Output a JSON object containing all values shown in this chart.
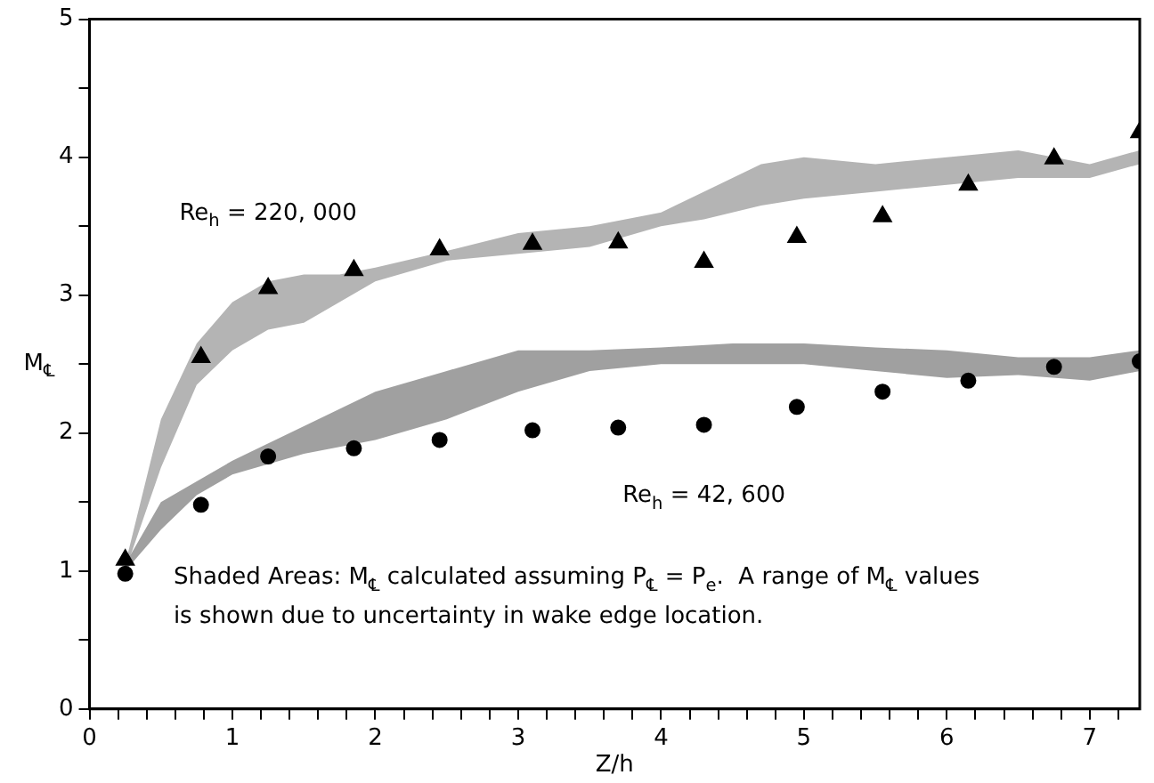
{
  "chart_data": {
    "type": "scatter",
    "xlabel": "Z/h",
    "ylabel": "M$_{℄}$",
    "xlim": [
      0,
      7.35
    ],
    "ylim": [
      0,
      5
    ],
    "xticks": [
      0,
      {
        "value": 0.2,
        "label": null
      },
      {
        "value": 0.4,
        "label": null
      },
      {
        "value": 0.6,
        "label": null
      },
      {
        "value": 0.8,
        "label": null
      },
      1,
      {
        "value": 1.2,
        "label": null
      },
      {
        "value": 1.4,
        "label": null
      },
      {
        "value": 1.6,
        "label": null
      },
      {
        "value": 1.8,
        "label": null
      },
      2,
      {
        "value": 2.2,
        "label": null
      },
      {
        "value": 2.4,
        "label": null
      },
      {
        "value": 2.6,
        "label": null
      },
      {
        "value": 2.8,
        "label": null
      },
      3,
      {
        "value": 3.2,
        "label": null
      },
      {
        "value": 3.4,
        "label": null
      },
      {
        "value": 3.6,
        "label": null
      },
      {
        "value": 3.8,
        "label": null
      },
      4,
      {
        "value": 4.2,
        "label": null
      },
      {
        "value": 4.4,
        "label": null
      },
      {
        "value": 4.6,
        "label": null
      },
      {
        "value": 4.8,
        "label": null
      },
      5,
      {
        "value": 5.2,
        "label": null
      },
      {
        "value": 5.4,
        "label": null
      },
      {
        "value": 5.6,
        "label": null
      },
      {
        "value": 5.8,
        "label": null
      },
      6,
      {
        "value": 6.2,
        "label": null
      },
      {
        "value": 6.4,
        "label": null
      },
      {
        "value": 6.6,
        "label": null
      },
      {
        "value": 6.8,
        "label": null
      },
      7,
      {
        "value": 7.2,
        "label": null
      }
    ],
    "yticks": [
      0,
      {
        "value": 0.5,
        "label": null
      },
      1,
      {
        "value": 1.5,
        "label": null
      },
      2,
      {
        "value": 2.5,
        "label": null
      },
      3,
      {
        "value": 3.5,
        "label": null
      },
      4,
      {
        "value": 4.5,
        "label": null
      },
      5
    ],
    "grid": false,
    "legend": false,
    "series": [
      {
        "type": "line",
        "color": "#b4b4b4",
        "x": [
          0.25,
          0.5,
          0.75,
          1.0,
          1.25,
          1.5,
          1.75,
          2.0,
          2.5,
          3.0,
          3.5,
          4.0,
          4.3,
          4.7,
          5.0,
          5.5,
          6.0,
          6.5,
          7.0,
          7.35
        ],
        "values": [
          null,
          null,
          null,
          null,
          null,
          null,
          null,
          null,
          null,
          null,
          null,
          null,
          null,
          null,
          null,
          null,
          null,
          null,
          null,
          null
        ],
        "lower": [
          1.0,
          1.75,
          2.35,
          2.6,
          2.75,
          2.8,
          2.95,
          3.1,
          3.25,
          3.3,
          3.35,
          3.5,
          3.55,
          3.65,
          3.7,
          3.75,
          3.8,
          3.85,
          3.85,
          3.95
        ],
        "upper": [
          1.05,
          2.1,
          2.65,
          2.95,
          3.1,
          3.15,
          3.15,
          3.2,
          3.32,
          3.45,
          3.5,
          3.6,
          3.75,
          3.95,
          4.0,
          3.95,
          4.0,
          4.05,
          3.95,
          4.05
        ]
      },
      {
        "type": "line",
        "color": "#a0a0a0",
        "x": [
          0.25,
          0.5,
          0.75,
          1.0,
          1.5,
          2.0,
          2.5,
          3.0,
          3.5,
          4.0,
          4.5,
          5.0,
          5.5,
          6.0,
          6.5,
          7.0,
          7.35
        ],
        "values": [
          null,
          null,
          null,
          null,
          null,
          null,
          null,
          null,
          null,
          null,
          null,
          null,
          null,
          null,
          null,
          null,
          null
        ],
        "lower": [
          1.0,
          1.3,
          1.55,
          1.7,
          1.85,
          1.95,
          2.1,
          2.3,
          2.45,
          2.5,
          2.5,
          2.5,
          2.45,
          2.4,
          2.42,
          2.38,
          2.45
        ],
        "upper": [
          1.05,
          1.5,
          1.65,
          1.8,
          2.05,
          2.3,
          2.45,
          2.6,
          2.6,
          2.62,
          2.65,
          2.65,
          2.62,
          2.6,
          2.55,
          2.55,
          2.6
        ]
      },
      {
        "type": "scatter",
        "name": "Re$_{h}$ = 220, 000",
        "marker": "triangle",
        "color": "#000000",
        "x": [
          0.25,
          0.78,
          1.25,
          1.85,
          2.45,
          3.1,
          3.7,
          4.3,
          4.95,
          5.55,
          6.15,
          6.75,
          7.35
        ],
        "values": [
          1.08,
          2.55,
          3.05,
          3.18,
          3.33,
          3.37,
          3.38,
          3.24,
          3.42,
          3.57,
          3.8,
          3.99,
          4.18
        ]
      },
      {
        "type": "scatter",
        "name": "Re$_{h}$ = 42, 600",
        "marker": "circle",
        "color": "#000000",
        "x": [
          0.25,
          0.78,
          1.25,
          1.85,
          2.45,
          3.1,
          3.7,
          4.3,
          4.95,
          5.55,
          6.15,
          6.75,
          7.35
        ],
        "values": [
          0.98,
          1.48,
          1.83,
          1.89,
          1.95,
          2.02,
          2.04,
          2.06,
          2.19,
          2.3,
          2.38,
          2.48,
          2.52
        ]
      }
    ],
    "annotations": [
      "Shaded Areas: M$_{℄}$ calculated assuming P$_{℄}$ = P$_{e}$.  A range of M$_{℄}$ values is shown due to uncertainty in wake edge location."
    ]
  }
}
